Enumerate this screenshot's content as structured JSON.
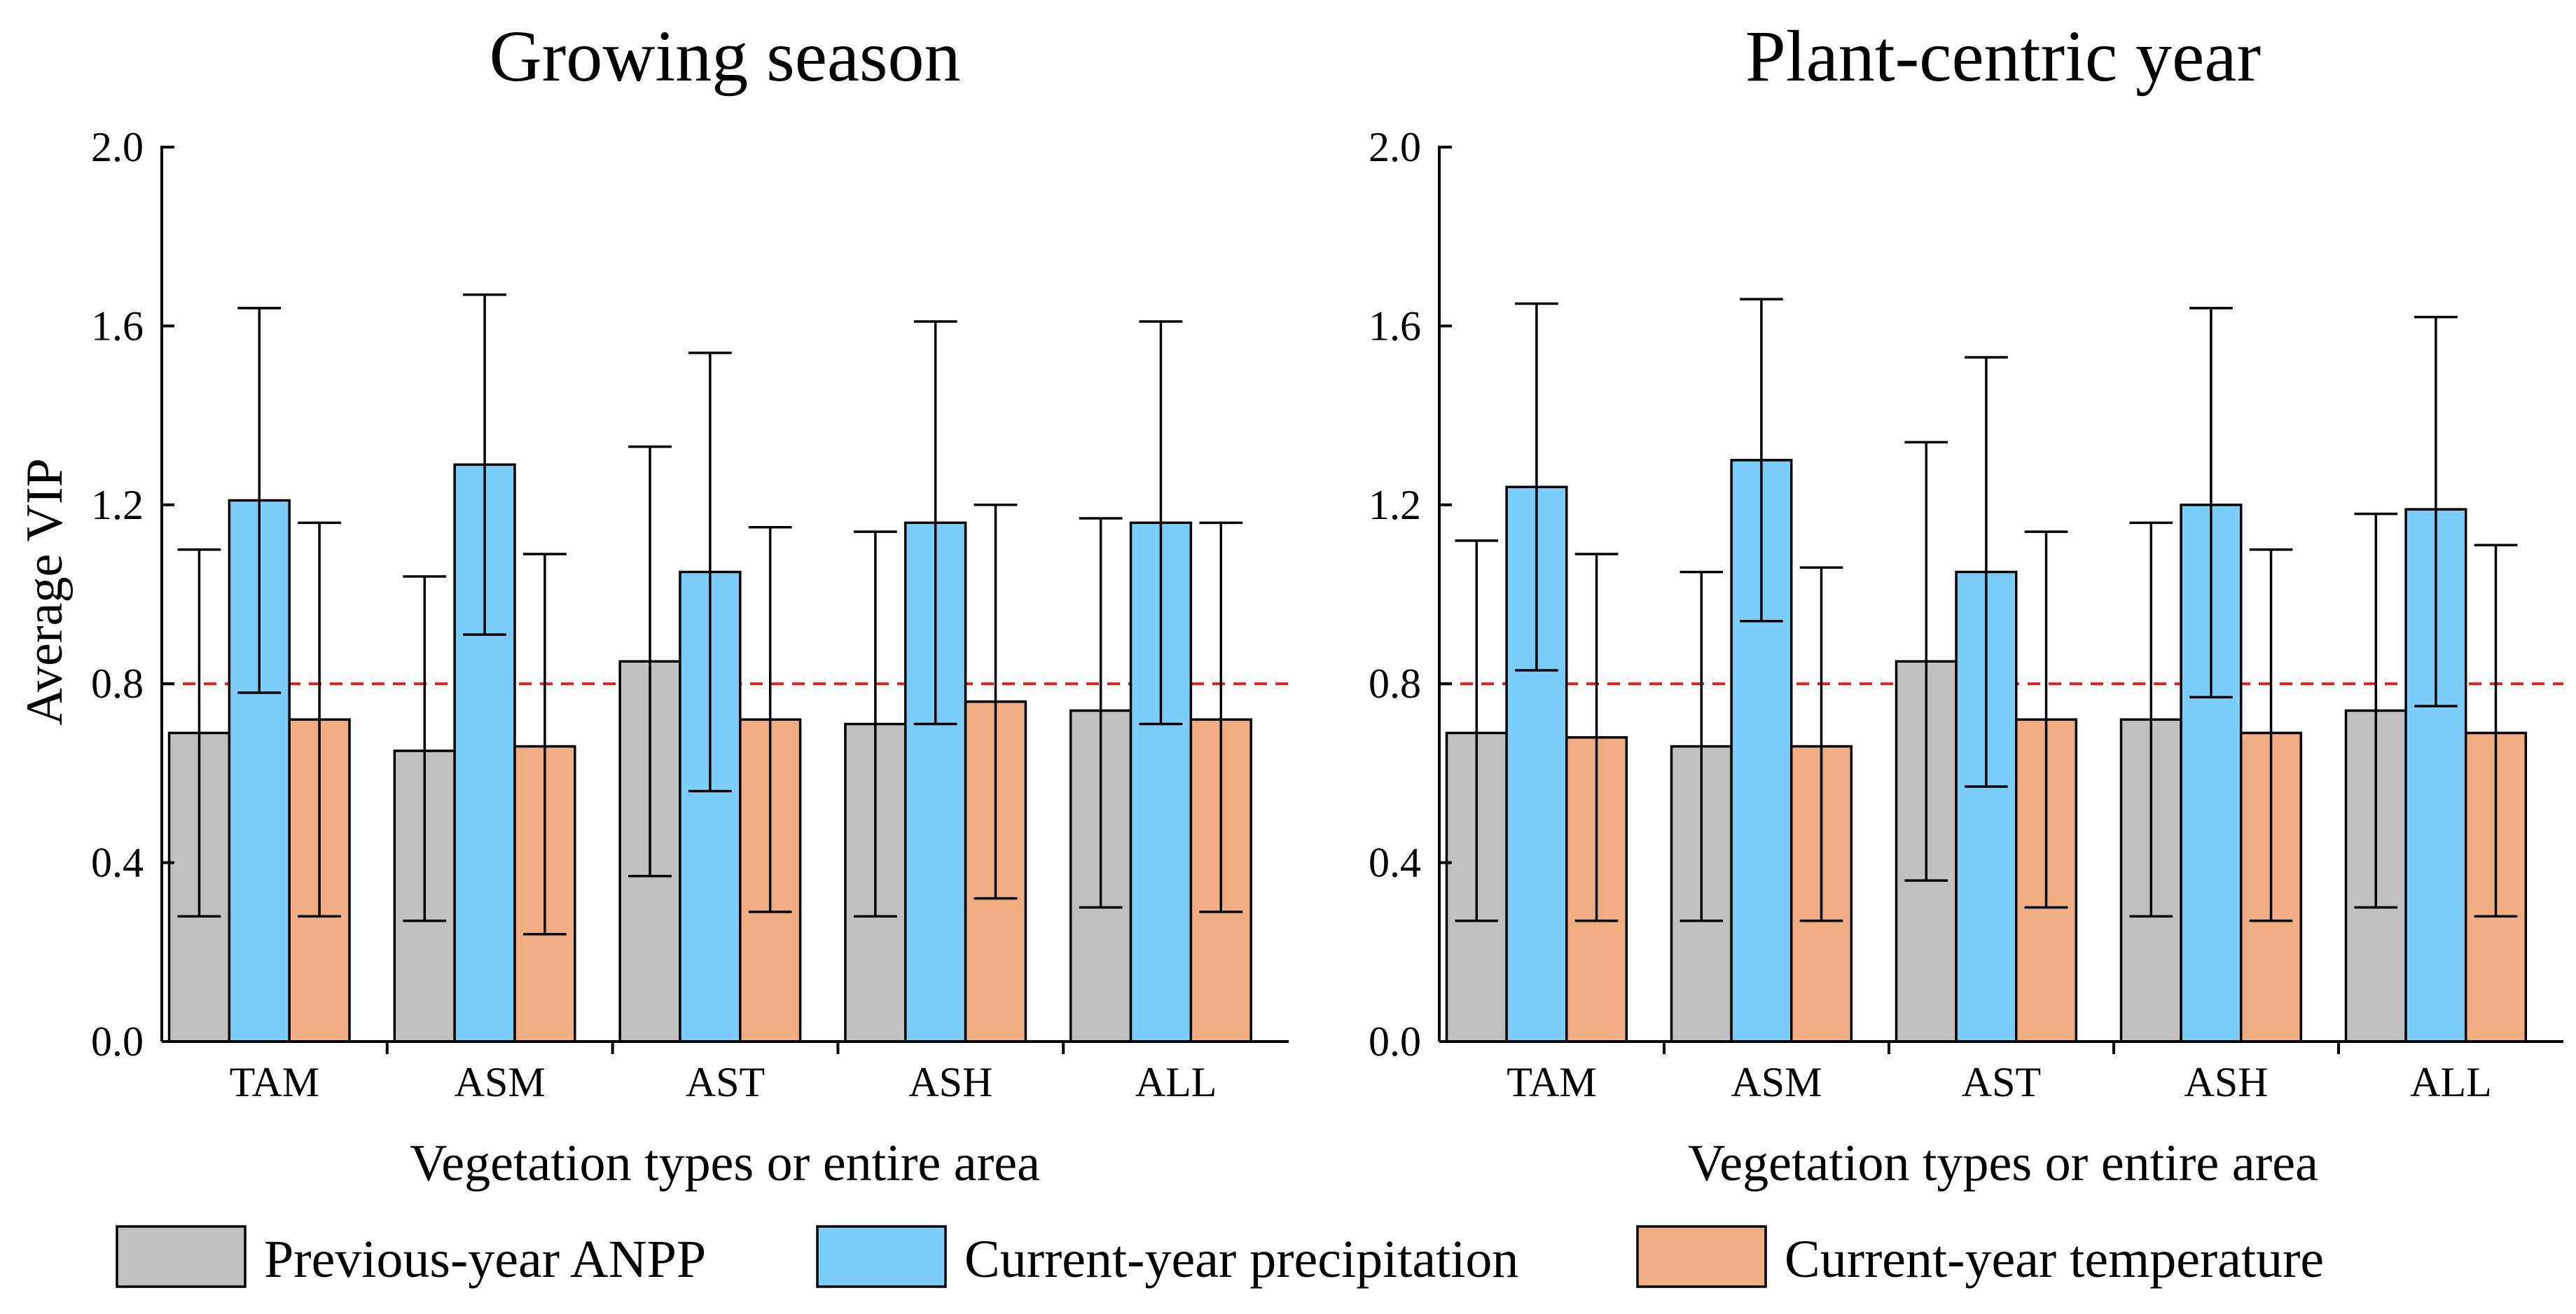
{
  "colors": {
    "previous_year_anpp": "#c0c0c0",
    "current_year_precipitation": "#7dcdfb",
    "current_year_temperature": "#f0ad82",
    "reference_line": "#e0201e"
  },
  "legend": [
    {
      "key": "previous_year_anpp",
      "label": "Previous-year ANPP"
    },
    {
      "key": "current_year_precipitation",
      "label": "Current-year precipitation"
    },
    {
      "key": "current_year_temperature",
      "label": "Current-year temperature"
    }
  ],
  "chart_data": [
    {
      "type": "bar",
      "title": "Growing season",
      "xlabel": "Vegetation types or entire area",
      "ylabel": "Average VIP",
      "ylim": [
        0.0,
        2.0
      ],
      "yticks": [
        "0.0",
        "0.4",
        "0.8",
        "1.2",
        "1.6",
        "2.0"
      ],
      "reference_line": 0.8,
      "categories": [
        "TAM",
        "ASM",
        "AST",
        "ASH",
        "ALL"
      ],
      "series": [
        {
          "name": "Previous-year ANPP",
          "key": "previous_year_anpp",
          "values": [
            0.69,
            0.65,
            0.85,
            0.71,
            0.74
          ],
          "err_low": [
            0.28,
            0.27,
            0.37,
            0.28,
            0.3
          ],
          "err_high": [
            1.1,
            1.04,
            1.33,
            1.14,
            1.17
          ]
        },
        {
          "name": "Current-year precipitation",
          "key": "current_year_precipitation",
          "values": [
            1.21,
            1.29,
            1.05,
            1.16,
            1.16
          ],
          "err_low": [
            0.78,
            0.91,
            0.56,
            0.71,
            0.71
          ],
          "err_high": [
            1.64,
            1.67,
            1.54,
            1.61,
            1.61
          ]
        },
        {
          "name": "Current-year temperature",
          "key": "current_year_temperature",
          "values": [
            0.72,
            0.66,
            0.72,
            0.76,
            0.72
          ],
          "err_low": [
            0.28,
            0.24,
            0.29,
            0.32,
            0.29
          ],
          "err_high": [
            1.16,
            1.09,
            1.15,
            1.2,
            1.16
          ]
        }
      ]
    },
    {
      "type": "bar",
      "title": "Plant-centric year",
      "xlabel": "Vegetation types or entire area",
      "ylabel": "",
      "ylim": [
        0.0,
        2.0
      ],
      "yticks": [
        "0.0",
        "0.4",
        "0.8",
        "1.2",
        "1.6",
        "2.0"
      ],
      "reference_line": 0.8,
      "categories": [
        "TAM",
        "ASM",
        "AST",
        "ASH",
        "ALL"
      ],
      "series": [
        {
          "name": "Previous-year ANPP",
          "key": "previous_year_anpp",
          "values": [
            0.69,
            0.66,
            0.85,
            0.72,
            0.74
          ],
          "err_low": [
            0.27,
            0.27,
            0.36,
            0.28,
            0.3
          ],
          "err_high": [
            1.12,
            1.05,
            1.34,
            1.16,
            1.18
          ]
        },
        {
          "name": "Current-year precipitation",
          "key": "current_year_precipitation",
          "values": [
            1.24,
            1.3,
            1.05,
            1.2,
            1.19
          ],
          "err_low": [
            0.83,
            0.94,
            0.57,
            0.77,
            0.75
          ],
          "err_high": [
            1.65,
            1.66,
            1.53,
            1.64,
            1.62
          ]
        },
        {
          "name": "Current-year temperature",
          "key": "current_year_temperature",
          "values": [
            0.68,
            0.66,
            0.72,
            0.69,
            0.69
          ],
          "err_low": [
            0.27,
            0.27,
            0.3,
            0.27,
            0.28
          ],
          "err_high": [
            1.09,
            1.06,
            1.14,
            1.1,
            1.11
          ]
        }
      ]
    }
  ]
}
